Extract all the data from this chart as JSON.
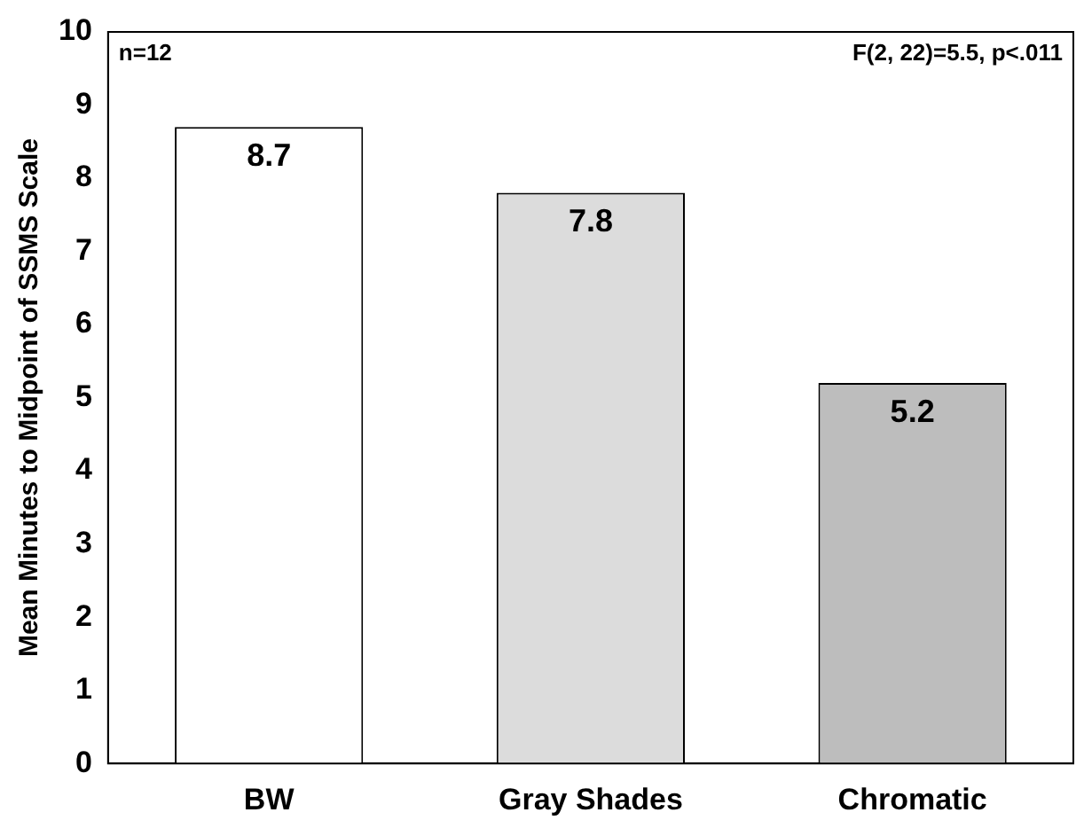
{
  "chart_data": {
    "type": "bar",
    "ylabel": "Mean Minutes to Midpoint of SSMS Scale",
    "categories": [
      "BW",
      "Gray Shades",
      "Chromatic"
    ],
    "values": [
      8.7,
      7.8,
      5.2
    ],
    "colors": [
      "#ffffff",
      "#dcdcdc",
      "#bdbdbd"
    ],
    "ylim": [
      0,
      10
    ],
    "yticks": [
      0,
      1,
      2,
      3,
      4,
      5,
      6,
      7,
      8,
      9,
      10
    ],
    "grid": false,
    "legend": false,
    "data_labels": true,
    "annotations": [
      "n=12",
      "F(2, 22)=5.5, p<.011"
    ]
  }
}
